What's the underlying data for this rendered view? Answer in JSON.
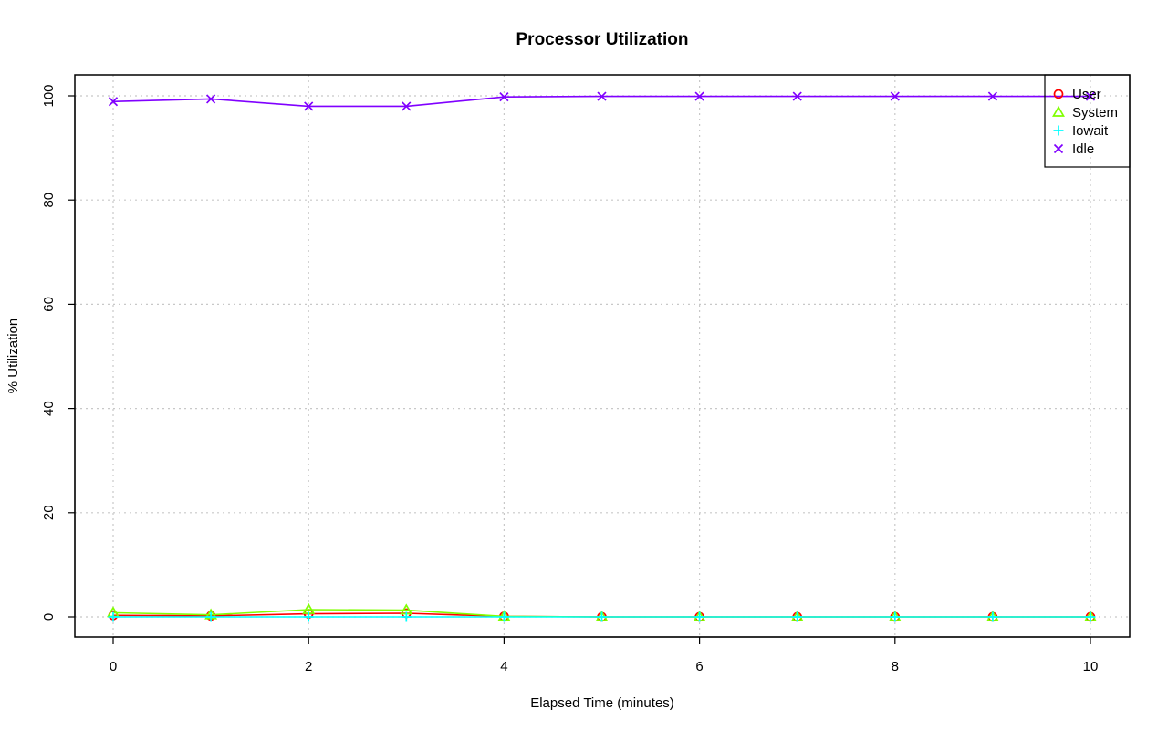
{
  "chart_data": {
    "type": "line",
    "title": "Processor Utilization",
    "xlabel": "Elapsed Time (minutes)",
    "ylabel": "% Utilization",
    "xlim": [
      0,
      10
    ],
    "ylim": [
      0,
      100
    ],
    "xticks": [
      0,
      2,
      4,
      6,
      8,
      10
    ],
    "yticks": [
      0,
      20,
      40,
      60,
      80,
      100
    ],
    "grid": true,
    "legend_position": "top-right",
    "x": [
      0,
      1,
      2,
      3,
      4,
      5,
      6,
      7,
      8,
      9,
      10
    ],
    "series": [
      {
        "name": "User",
        "color": "#ff0000",
        "marker": "circle",
        "values": [
          0.3,
          0.2,
          0.6,
          0.7,
          0.1,
          0.0,
          0.0,
          0.0,
          0.0,
          0.0,
          0.0
        ]
      },
      {
        "name": "System",
        "color": "#80ff00",
        "marker": "triangle",
        "values": [
          0.8,
          0.4,
          1.4,
          1.3,
          0.1,
          0.0,
          0.0,
          0.0,
          0.0,
          0.0,
          0.0
        ]
      },
      {
        "name": "Iowait",
        "color": "#00ffff",
        "marker": "plus",
        "values": [
          0.0,
          0.0,
          0.0,
          0.0,
          0.0,
          0.0,
          0.0,
          0.0,
          0.0,
          0.0,
          0.0
        ]
      },
      {
        "name": "Idle",
        "color": "#8000ff",
        "marker": "cross",
        "values": [
          98.9,
          99.4,
          98.0,
          98.0,
          99.8,
          99.9,
          99.9,
          99.9,
          99.9,
          99.9,
          99.9
        ]
      }
    ]
  }
}
